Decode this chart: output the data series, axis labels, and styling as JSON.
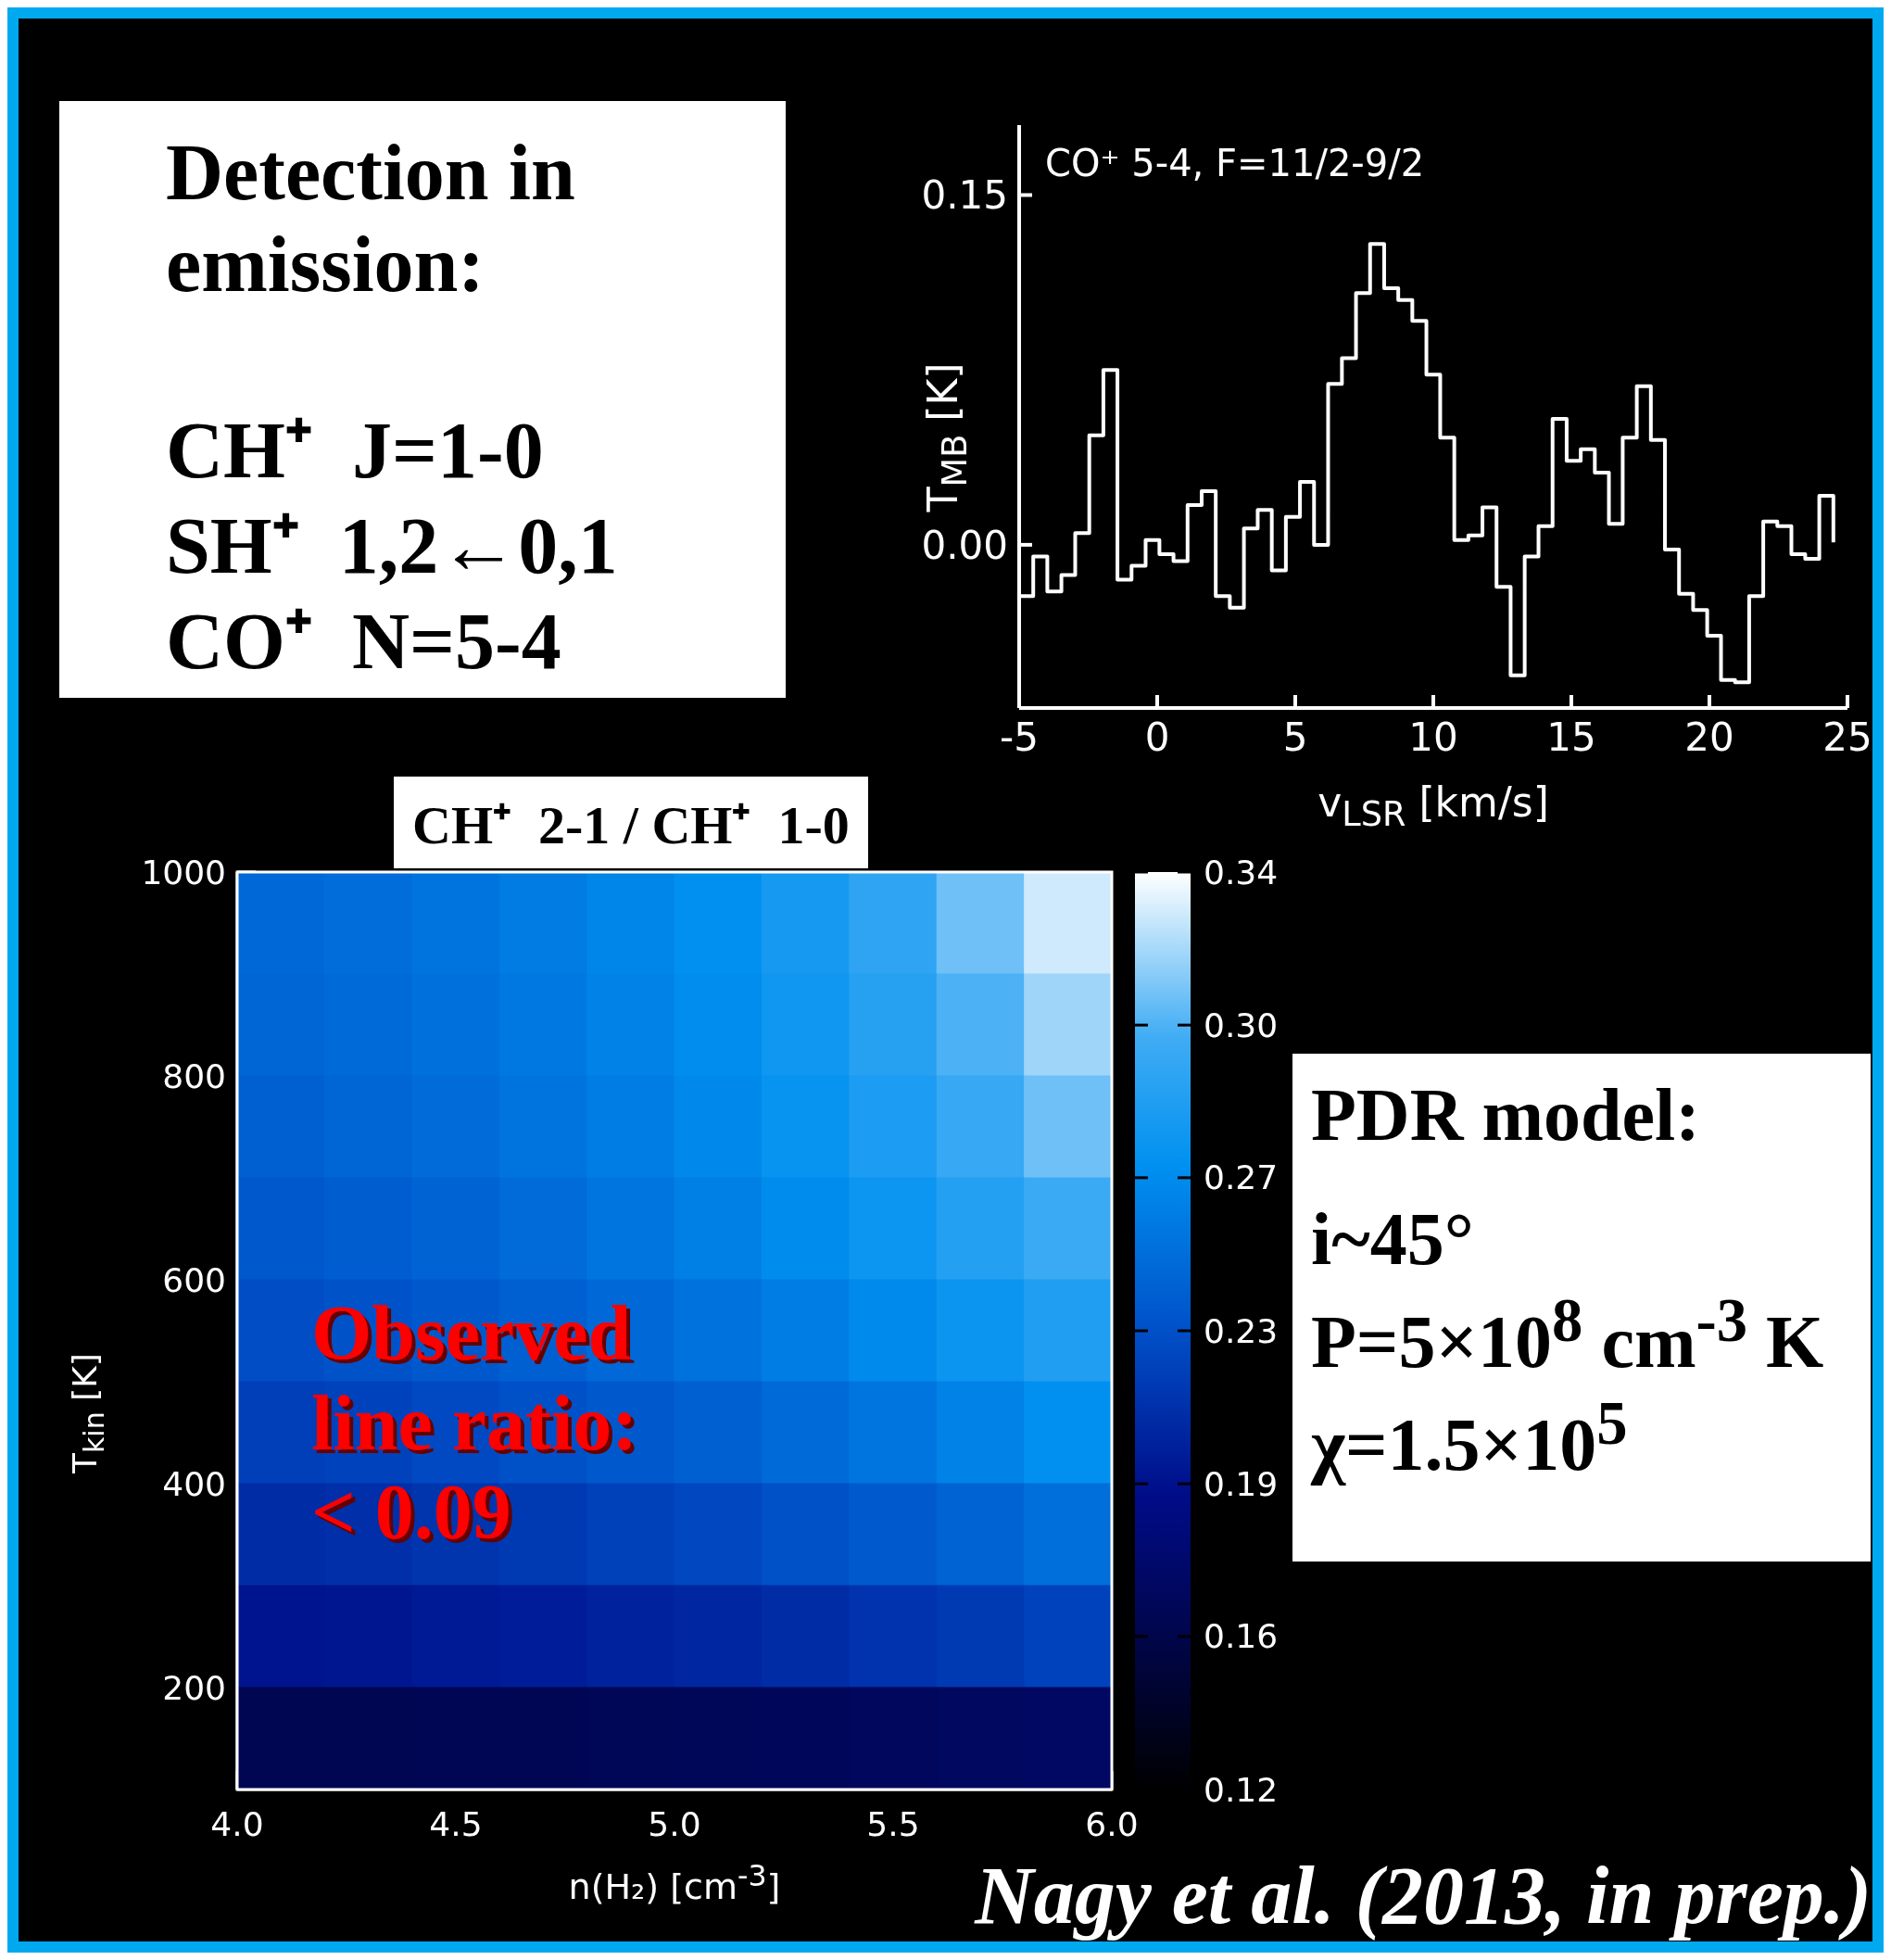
{
  "chart_data": [
    {
      "type": "other",
      "title": "Detection in emission:",
      "annotations": [
        "CH⁺  J=1-0",
        "SH⁺  1,2←0,1",
        "CO⁺  N=5-4"
      ]
    },
    {
      "type": "step",
      "xlabel": "v$_{LSR}$ [km/s]",
      "ylabel": "T$_{MB}$ [K]",
      "annotations": [
        "CO⁺ 5-4, F=11/2-9/2"
      ],
      "xlim": [
        -5,
        25
      ],
      "xticks": [
        -5,
        0,
        5,
        10,
        15,
        20,
        25
      ],
      "ylim": [
        -0.07,
        0.18
      ],
      "yticks": [
        {
          "value": 0,
          "label": "0.00"
        },
        0.15
      ],
      "x": [
        -5,
        -4.49,
        -3.98,
        -3.47,
        -2.97,
        -2.46,
        -1.95,
        -1.44,
        -0.93,
        -0.42,
        0.08,
        0.59,
        1.1,
        1.61,
        2.12,
        2.63,
        3.14,
        3.64,
        4.15,
        4.66,
        5.17,
        5.68,
        6.19,
        6.69,
        7.2,
        7.71,
        8.22,
        8.73,
        9.24,
        9.75,
        10.25,
        10.76,
        11.27,
        11.78,
        12.29,
        12.8,
        13.31,
        13.81,
        14.32,
        14.83,
        15.34,
        15.85,
        16.36,
        16.86,
        17.37,
        17.88,
        18.39,
        18.9,
        19.41,
        19.92,
        20.42,
        20.93,
        21.44,
        21.95,
        22.46,
        22.97,
        23.47,
        23.98,
        24.49
      ],
      "series": [
        {
          "color": "#ffffff",
          "values": [
            -0.022,
            -0.005,
            -0.02,
            -0.013,
            0.005,
            0.047,
            0.075,
            -0.015,
            -0.009,
            0.002,
            -0.004,
            -0.007,
            0.017,
            0.023,
            -0.022,
            -0.027,
            0.007,
            0.015,
            -0.011,
            0.012,
            0.027,
            0,
            0.069,
            0.08,
            0.108,
            0.129,
            0.11,
            0.105,
            0.096,
            0.073,
            0.046,
            0.002,
            0.004,
            0.016,
            -0.018,
            -0.056,
            -0.005,
            0.008,
            0.054,
            0.036,
            0.041,
            0.031,
            0.009,
            0.046,
            0.068,
            0.045,
            -0.002,
            -0.021,
            -0.028,
            -0.039,
            -0.058,
            -0.059,
            -0.022,
            0.01,
            0.008,
            -0.004,
            -0.006,
            0.021,
            0.001
          ]
        }
      ]
    },
    {
      "type": "heatmap",
      "title": "CH⁺  2-1 / CH⁺  1-0",
      "xlabel": "n(H₂) [cm$^{-3}$]",
      "ylabel": "T$_{kin}$ [K]",
      "annotations": [
        "Observed line ratio: < 0.09"
      ],
      "xlim": [
        4,
        6
      ],
      "xticks": [
        {
          "value": 4,
          "label": "4.0"
        },
        4.5,
        {
          "value": 5,
          "label": "5.0"
        },
        5.5,
        {
          "value": 6,
          "label": "6.0"
        }
      ],
      "ylim": [
        100,
        1000
      ],
      "yticks": [
        200,
        400,
        600,
        800,
        1000
      ],
      "clim": [
        0.12,
        0.34
      ],
      "cticks": [
        0.12,
        {
          "value": 0.1567,
          "label": "0.16"
        },
        {
          "value": 0.1933,
          "label": "0.19"
        },
        0.23,
        {
          "value": 0.2667,
          "label": "0.27"
        },
        {
          "value": 0.3033,
          "label": "0.30"
        },
        0.34
      ],
      "cells": [
        [
          0.245,
          0.248,
          0.252,
          0.257,
          0.263,
          0.27,
          0.28,
          0.292,
          0.31,
          0.33
        ],
        [
          0.243,
          0.246,
          0.25,
          0.255,
          0.261,
          0.268,
          0.277,
          0.288,
          0.303,
          0.32
        ],
        [
          0.24,
          0.243,
          0.247,
          0.252,
          0.258,
          0.265,
          0.273,
          0.283,
          0.296,
          0.31
        ],
        [
          0.235,
          0.238,
          0.242,
          0.247,
          0.253,
          0.259,
          0.267,
          0.276,
          0.287,
          0.298
        ],
        [
          0.228,
          0.231,
          0.235,
          0.24,
          0.245,
          0.251,
          0.258,
          0.266,
          0.275,
          0.285
        ],
        [
          0.22,
          0.222,
          0.226,
          0.23,
          0.235,
          0.24,
          0.246,
          0.253,
          0.261,
          0.27
        ],
        [
          0.209,
          0.211,
          0.214,
          0.217,
          0.221,
          0.225,
          0.23,
          0.236,
          0.242,
          0.249
        ],
        [
          0.195,
          0.196,
          0.198,
          0.2,
          0.203,
          0.206,
          0.209,
          0.213,
          0.217,
          0.222
        ],
        [
          0.16,
          0.16,
          0.161,
          0.162,
          0.163,
          0.164,
          0.165,
          0.166,
          0.168,
          0.17
        ]
      ]
    },
    {
      "type": "other",
      "title": "PDR model:",
      "annotations": [
        "i~45°",
        "P=5×10$^{8}$ cm$^{-3}$ K",
        "χ=1.5×10$^{5}$"
      ]
    },
    {
      "type": "other",
      "annotations": [
        "Nagy et al. (2013, in prep.)"
      ]
    }
  ]
}
